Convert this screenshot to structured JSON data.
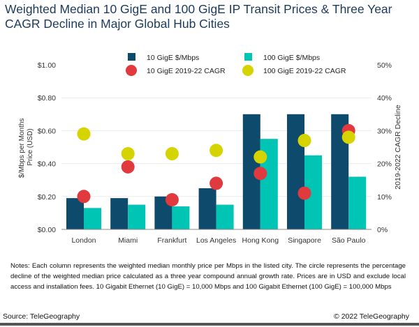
{
  "chart_data": {
    "type": "bar",
    "title": "Weighted Median 10 GigE and 100 GigE IP Transit Prices & Three Year CAGR Decline in Major Global Hub Cities",
    "categories": [
      "London",
      "Miami",
      "Frankfurt",
      "Los Angeles",
      "Hong Kong",
      "Singapore",
      "São Paulo"
    ],
    "series": [
      {
        "name": "10 GigE $/Mbps",
        "kind": "bar",
        "axis": "left",
        "color": "#0d4a6b",
        "values": [
          0.19,
          0.19,
          0.2,
          0.25,
          0.7,
          0.7,
          0.7
        ]
      },
      {
        "name": "100 GigE $/Mbps",
        "kind": "bar",
        "axis": "left",
        "color": "#00c4b4",
        "values": [
          0.13,
          0.15,
          0.14,
          0.15,
          0.55,
          0.45,
          0.32
        ]
      },
      {
        "name": "10 GigE 2019-22 CAGR",
        "kind": "dot",
        "axis": "right",
        "color": "#e03a3e",
        "values": [
          10,
          19,
          9,
          14,
          17,
          11,
          30
        ]
      },
      {
        "name": "100 GigE 2019-22 CAGR",
        "kind": "dot",
        "axis": "right",
        "color": "#d6d400",
        "values": [
          29,
          23,
          23,
          24,
          22,
          27,
          28
        ]
      }
    ],
    "ylabel": "$/Mbps per Months Price (USD)",
    "ylim": [
      0,
      1.0
    ],
    "yticks": [
      "$0.00",
      "$0.20",
      "$0.40",
      "$0.60",
      "$0.80",
      "$1.00"
    ],
    "y2label": "2019-2022 CAGR Decline",
    "y2lim": [
      0,
      50
    ],
    "y2ticks": [
      "0%",
      "10%",
      "20%",
      "30%",
      "40%",
      "50%"
    ],
    "grid": true,
    "legend_position": "top-center"
  },
  "notes": "Notes: Each column represents the weighted median monthly price per Mbps in the listed city. The circle represents the percentage decline of the weighted median price calculated as a three year compound annual growth rate. Prices are in USD and exclude local access and installation fees. 10 Gigabit Ethernet (10 GigE) = 10,000 Mbps and 100 Gigabit Ethernet (100 GigE) = 100,000 Mbps",
  "source": "Source: TeleGeography",
  "copyright": "© 2022 TeleGeography"
}
